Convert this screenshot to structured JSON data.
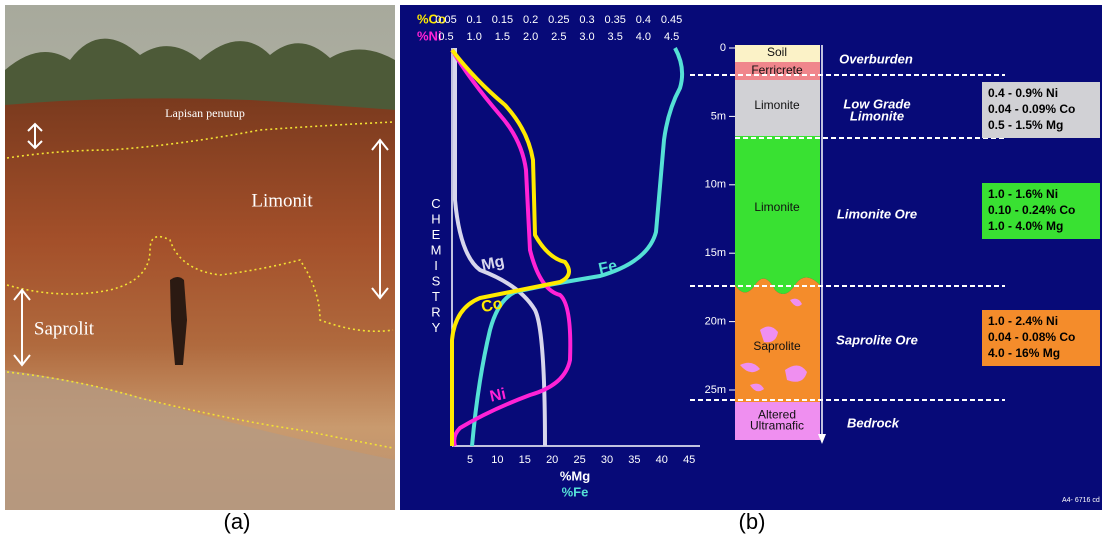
{
  "panel_a": {
    "label": "(a)",
    "annotations": {
      "cover": "Lapisan penutup",
      "limonite": "Limonit",
      "saprolite": "Saprolit"
    }
  },
  "panel_b": {
    "label": "(b)",
    "top_axes": [
      {
        "name": "%Co",
        "ticks": [
          "0.05",
          "0.1",
          "0.15",
          "0.2",
          "0.25",
          "0.3",
          "0.35",
          "0.4",
          "0.45"
        ]
      },
      {
        "name": "%Ni",
        "ticks": [
          "0.5",
          "1.0",
          "1.5",
          "2.0",
          "2.5",
          "3.0",
          "3.5",
          "4.0",
          "4.5"
        ]
      }
    ],
    "bottom_axis": {
      "names": [
        "%Mg",
        "%Fe"
      ],
      "ticks": [
        "5",
        "10",
        "15",
        "20",
        "25",
        "30",
        "35",
        "40",
        "45"
      ]
    },
    "side_label": "CHEMISTRY",
    "curve_labels": {
      "mg": "Mg",
      "co": "Co",
      "fe": "Fe",
      "ni": "Ni"
    },
    "depth_ticks": [
      "0",
      "5m",
      "10m",
      "15m",
      "20m",
      "25m"
    ],
    "layers": [
      [
        "Soil"
      ],
      [
        "Ferricrete"
      ],
      [
        "Limonite"
      ],
      [
        "Limonite"
      ],
      [
        "Saprolite"
      ],
      [
        "Altered",
        "Ultramafic"
      ]
    ],
    "zones": [
      [
        "Overburden"
      ],
      [
        "Low Grade",
        "Limonite"
      ],
      [
        "Limonite Ore"
      ],
      [
        "Saprolite Ore"
      ],
      [
        "Bedrock"
      ]
    ],
    "grades": [
      [
        "0.4 - 0.9% Ni",
        "0.04 - 0.09% Co",
        "0.5 - 1.5% Mg"
      ],
      [
        "1.0 - 1.6% Ni",
        "0.10 - 0.24% Co",
        "1.0 - 4.0% Mg"
      ],
      [
        "1.0 - 2.4% Ni",
        "0.04 - 0.08% Co",
        "4.0 - 16% Mg"
      ]
    ],
    "code": "A4- 6716 cd"
  }
}
